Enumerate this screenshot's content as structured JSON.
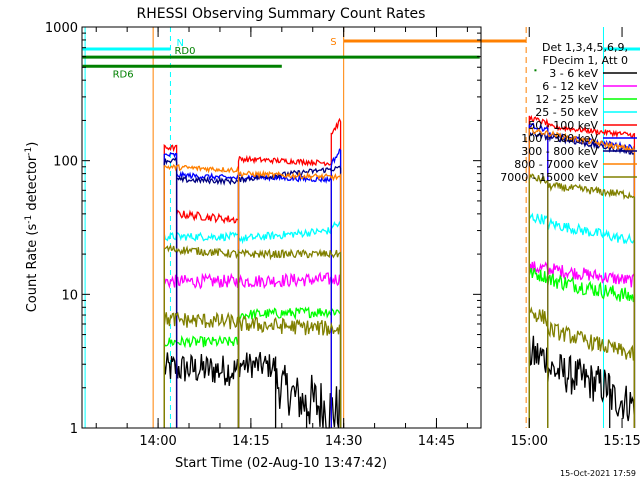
{
  "chart_data": {
    "type": "line",
    "title": "RHESSI Observing Summary Count Rates",
    "xlabel": "Start Time (02-Aug-10 13:47:42)",
    "ylabel_main": "Count Rate (s",
    "ylabel_sup1": "-1",
    "ylabel_mid": " detector",
    "ylabel_sup2": "-1",
    "ylabel_end": ")",
    "yscale": "log",
    "ylim": [
      1,
      1000
    ],
    "xlim_minutes": [
      -12.3,
      52.2
    ],
    "x_ticks": [
      {
        "label": "14:00",
        "min": 0
      },
      {
        "label": "14:15",
        "min": 15
      },
      {
        "label": "14:30",
        "min": 30
      },
      {
        "label": "14:45",
        "min": 45
      },
      {
        "label": "15:00",
        "min": 60
      },
      {
        "label": "15:15",
        "min": 75
      }
    ],
    "y_ticks": [
      {
        "label": "1",
        "value": 1
      },
      {
        "label": "10",
        "value": 10
      },
      {
        "label": "100",
        "value": 100
      },
      {
        "label": "1000",
        "value": 1000
      }
    ],
    "legend": {
      "placement": "right",
      "header": [
        "Det 1,3,4,5,6,9,",
        "FDecim 1, Att 0"
      ]
    },
    "series": [
      {
        "name": "3 - 6 keV",
        "color": "#000000",
        "segments": [
          {
            "t0": 1,
            "t1": 13,
            "start": 2.8,
            "end": 2.7,
            "noise": 0.12
          },
          {
            "t0": 13,
            "t1": 19,
            "start": 3.0,
            "end": 2.9,
            "noise": 0.1
          },
          {
            "t0": 19,
            "t1": 24,
            "start": 2.2,
            "end": 1.5,
            "noise": 0.18
          },
          {
            "t0": 24,
            "t1": 29.5,
            "start": 1.6,
            "end": 1.3,
            "noise": 0.22
          },
          {
            "t0": 60,
            "t1": 63,
            "start": 3.6,
            "end": 3.3,
            "noise": 0.15
          },
          {
            "t0": 63,
            "t1": 73,
            "start": 2.8,
            "end": 2.0,
            "noise": 0.15
          },
          {
            "t0": 73,
            "t1": 77,
            "start": 1.7,
            "end": 1.5,
            "noise": 0.15
          }
        ]
      },
      {
        "name": "6 - 12 keV",
        "color": "#ff00ff",
        "segments": [
          {
            "t0": 1,
            "t1": 13,
            "start": 12.5,
            "end": 12.5,
            "noise": 0.05
          },
          {
            "t0": 13,
            "t1": 29.5,
            "start": 12.5,
            "end": 13.0,
            "noise": 0.05
          },
          {
            "t0": 60,
            "t1": 63,
            "start": 16.0,
            "end": 15.5,
            "noise": 0.05
          },
          {
            "t0": 63,
            "t1": 77,
            "start": 15.5,
            "end": 12.5,
            "noise": 0.05
          }
        ]
      },
      {
        "name": "12 - 25 keV",
        "color": "#00ff00",
        "segments": [
          {
            "t0": 1,
            "t1": 13,
            "start": 4.4,
            "end": 4.4,
            "noise": 0.04
          },
          {
            "t0": 13,
            "t1": 29.5,
            "start": 7.0,
            "end": 7.5,
            "noise": 0.04
          },
          {
            "t0": 60,
            "t1": 63,
            "start": 14.5,
            "end": 13.5,
            "noise": 0.05
          },
          {
            "t0": 63,
            "t1": 77,
            "start": 13.0,
            "end": 9.5,
            "noise": 0.06
          }
        ]
      },
      {
        "name": "25 - 50 keV",
        "color": "#00ffff",
        "segments": [
          {
            "t0": 1,
            "t1": 13,
            "start": 27,
            "end": 27,
            "noise": 0.03
          },
          {
            "t0": 13,
            "t1": 28,
            "start": 26,
            "end": 30,
            "noise": 0.03
          },
          {
            "t0": 28,
            "t1": 29.5,
            "start": 33,
            "end": 33,
            "noise": 0.03
          },
          {
            "t0": 60,
            "t1": 63,
            "start": 38,
            "end": 36,
            "noise": 0.04
          },
          {
            "t0": 63,
            "t1": 77,
            "start": 34,
            "end": 25,
            "noise": 0.04
          }
        ]
      },
      {
        "name": "50 - 100 keV",
        "color": "#ff0000",
        "segments": [
          {
            "t0": 1,
            "t1": 3,
            "start": 125,
            "end": 125,
            "noise": 0.02
          },
          {
            "t0": 3,
            "t1": 13,
            "start": 40,
            "end": 36,
            "noise": 0.03
          },
          {
            "t0": 13,
            "t1": 28,
            "start": 103,
            "end": 96,
            "noise": 0.02
          },
          {
            "t0": 28,
            "t1": 29.5,
            "start": 160,
            "end": 200,
            "noise": 0.02
          },
          {
            "t0": 60,
            "t1": 63,
            "start": 210,
            "end": 190,
            "noise": 0.02
          },
          {
            "t0": 63,
            "t1": 77,
            "start": 180,
            "end": 155,
            "noise": 0.02
          }
        ]
      },
      {
        "name": "100 - 300 keV",
        "color": "#0000ff",
        "segments": [
          {
            "t0": 1,
            "t1": 3,
            "start": 110,
            "end": 110,
            "noise": 0.02
          },
          {
            "t0": 3,
            "t1": 13,
            "start": 78,
            "end": 74,
            "noise": 0.02
          },
          {
            "t0": 13,
            "t1": 28,
            "start": 76,
            "end": 72,
            "noise": 0.02
          },
          {
            "t0": 28,
            "t1": 29.5,
            "start": 95,
            "end": 120,
            "noise": 0.02
          },
          {
            "t0": 60,
            "t1": 63,
            "start": 185,
            "end": 170,
            "noise": 0.02
          },
          {
            "t0": 63,
            "t1": 77,
            "start": 155,
            "end": 125,
            "noise": 0.02
          }
        ]
      },
      {
        "name": "300 - 800 keV",
        "color": "#000080",
        "segments": [
          {
            "t0": 1,
            "t1": 3,
            "start": 100,
            "end": 100,
            "noise": 0.02
          },
          {
            "t0": 3,
            "t1": 13,
            "start": 72,
            "end": 70,
            "noise": 0.02
          },
          {
            "t0": 13,
            "t1": 29.5,
            "start": 72,
            "end": 88,
            "noise": 0.02
          },
          {
            "t0": 60,
            "t1": 77,
            "start": 160,
            "end": 115,
            "noise": 0.02
          }
        ]
      },
      {
        "name": "800 - 7000 keV",
        "color": "#ff8000",
        "segments": [
          {
            "t0": 1,
            "t1": 13,
            "start": 90,
            "end": 85,
            "noise": 0.02
          },
          {
            "t0": 13,
            "t1": 29.5,
            "start": 80,
            "end": 75,
            "noise": 0.02
          },
          {
            "t0": 60,
            "t1": 77,
            "start": 170,
            "end": 120,
            "noise": 0.02
          }
        ]
      },
      {
        "name": "7000 - 15000 keV",
        "color": "#808000",
        "segments": [
          {
            "t0": 1,
            "t1": 13,
            "start": 22,
            "end": 20,
            "noise": 0.03
          },
          {
            "t0": 13,
            "t1": 29.5,
            "start": 20,
            "end": 20,
            "noise": 0.03
          },
          {
            "t0": 60,
            "t1": 63,
            "start": 76,
            "end": 70,
            "noise": 0.03
          },
          {
            "t0": 63,
            "t1": 77,
            "start": 65,
            "end": 55,
            "noise": 0.03
          }
        ]
      },
      {
        "name": "",
        "color": "#808000",
        "segments": [
          {
            "t0": 1,
            "t1": 13,
            "start": 6.5,
            "end": 6.2,
            "noise": 0.06
          },
          {
            "t0": 13,
            "t1": 29.5,
            "start": 6.0,
            "end": 5.5,
            "noise": 0.06
          },
          {
            "t0": 60,
            "t1": 63,
            "start": 7.5,
            "end": 6.5,
            "noise": 0.06
          },
          {
            "t0": 63,
            "t1": 77,
            "start": 5.5,
            "end": 3.5,
            "noise": 0.06
          }
        ]
      }
    ],
    "orange_vertical_lines_min": [
      -0.8,
      30
    ],
    "orange_dashed_lines_min": [
      59.5
    ],
    "cyan_solid_lines_min": [
      -11.8,
      72
    ],
    "cyan_dashed_lines_min": [
      2,
      80.5
    ],
    "flags": [
      {
        "label": "N",
        "color": "#00ffff",
        "y_frac": 0.055,
        "segments": [
          [
            -12.2,
            2
          ],
          [
            72,
            80.8
          ]
        ]
      },
      {
        "label": "RD0",
        "color": "#008000",
        "y_frac": 0.075,
        "segments": [
          [
            -12.2,
            52
          ]
        ]
      },
      {
        "label": "RD6",
        "color": "#008000",
        "y_frac": 0.098,
        "segments": [
          [
            -12.2,
            20
          ]
        ]
      },
      {
        "label": "S",
        "color": "#ff8000",
        "y_frac": 0.035,
        "segments": [
          [
            30,
            59.5
          ]
        ]
      }
    ],
    "gap_dot_min": 61,
    "timestamp": "15-Oct-2021 17:59"
  }
}
